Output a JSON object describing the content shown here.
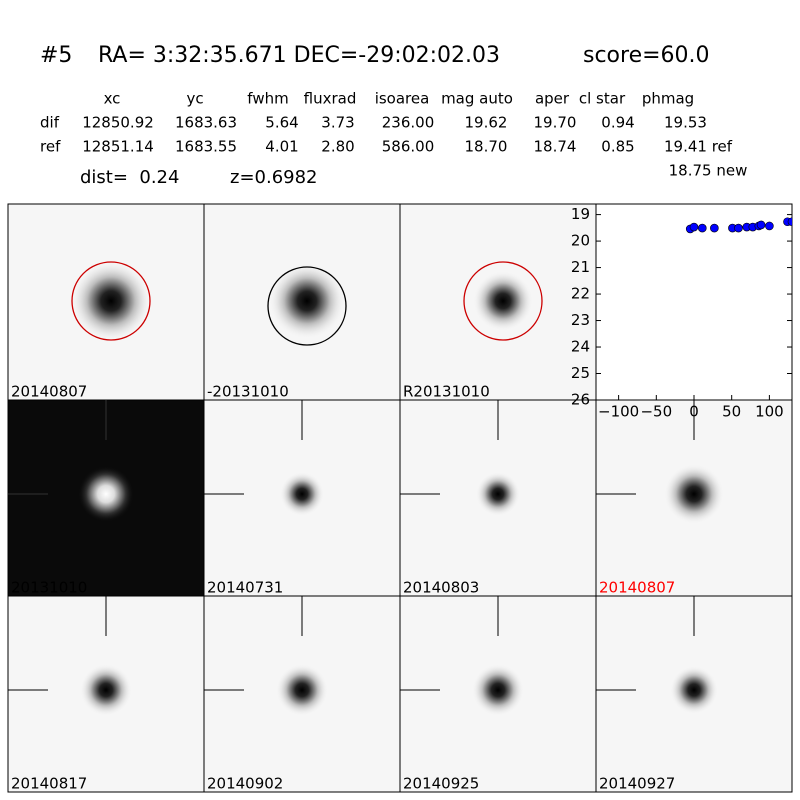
{
  "header": {
    "id": "#5",
    "coords": "RA= 3:32:35.671 DEC=-29:02:02.03",
    "score": "score=60.0"
  },
  "table": {
    "columns": [
      "xc",
      "yc",
      "fwhm",
      "fluxrad",
      "isoarea",
      "mag auto",
      "aper",
      "cl star",
      "phmag"
    ],
    "rows": [
      [
        "dif",
        "12850.92",
        "1683.63",
        "5.64",
        "3.73",
        "236.00",
        "19.62",
        "19.70",
        "0.94",
        "19.53"
      ],
      [
        "ref",
        "12851.14",
        "1683.55",
        "4.01",
        "2.80",
        "586.00",
        "18.70",
        "18.74",
        "0.85",
        "19.41 ref"
      ]
    ],
    "new_mag": "18.75 new",
    "dist": "dist=  0.24",
    "redshift": "z=0.6982"
  },
  "panels": [
    {
      "label": "20140807",
      "color": "#000000"
    },
    {
      "label": "-20131010",
      "color": "#000000"
    },
    {
      "label": "R20131010",
      "color": "#000000"
    },
    {
      "label": "20131010",
      "color": "#000000"
    },
    {
      "label": "20140731",
      "color": "#000000"
    },
    {
      "label": "20140803",
      "color": "#000000"
    },
    {
      "label": "20140807",
      "color": "#ff0000"
    },
    {
      "label": "20140817",
      "color": "#000000"
    },
    {
      "label": "20140902",
      "color": "#000000"
    },
    {
      "label": "20140925",
      "color": "#000000"
    },
    {
      "label": "20140927",
      "color": "#000000"
    }
  ],
  "chart_data": {
    "type": "scatter",
    "color": "#0000ff",
    "x": [
      -5,
      0,
      11,
      27,
      51,
      59,
      70,
      78,
      86,
      89,
      100,
      124,
      130
    ],
    "values": [
      19.54,
      19.47,
      19.51,
      19.51,
      19.51,
      19.51,
      19.47,
      19.47,
      19.43,
      19.39,
      19.43,
      19.27,
      19.27
    ],
    "xlim": [
      -130,
      130
    ],
    "ylim": [
      26,
      18.6
    ],
    "xticks": [
      {
        "value": -100,
        "label": "−100"
      },
      {
        "value": -50,
        "label": "−50"
      },
      0,
      50,
      100
    ],
    "yticks": [
      19,
      20,
      21,
      22,
      23,
      24,
      25,
      26
    ]
  }
}
